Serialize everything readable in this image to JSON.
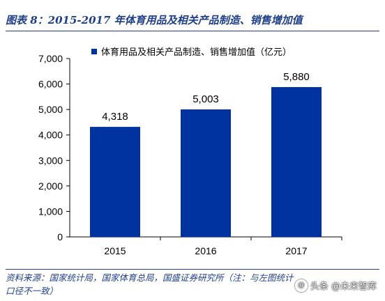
{
  "figure": {
    "title": "图表 8：2015-2017 年体育用品及相关产品制造、销售增加值",
    "source": "资料来源：国家统计局，国家体育总局，国盛证券研究所（注：与左图统计口径不一致）"
  },
  "watermark": {
    "text": "头条 @未来智库",
    "icon": "at-icon"
  },
  "chart_data": {
    "type": "bar",
    "categories": [
      "2015",
      "2016",
      "2017"
    ],
    "series": [
      {
        "name": "体育用品及相关产品制造、销售增加值（亿元）",
        "values": [
          4318,
          5003,
          5880
        ],
        "labels": [
          "4,318",
          "5,003",
          "5,880"
        ]
      }
    ],
    "yticks": [
      "0",
      "1,000",
      "2,000",
      "3,000",
      "4,000",
      "5,000",
      "6,000",
      "7,000"
    ],
    "ylim": [
      0,
      7000
    ],
    "xlabel": "",
    "ylabel": "",
    "grid": false,
    "legend_position": "top",
    "bar_color": "#0033a0",
    "text_color": "#000000"
  }
}
